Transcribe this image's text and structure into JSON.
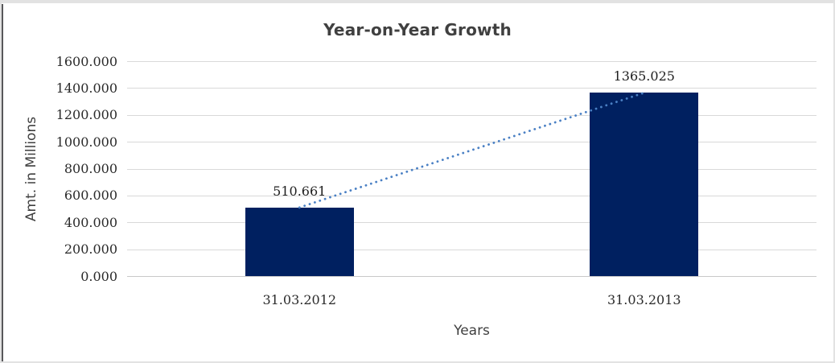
{
  "chart_data": {
    "type": "bar",
    "title": "Year-on-Year Growth",
    "categories": [
      "31.03.2012",
      "31.03.2013"
    ],
    "series": [
      {
        "name": "Amt. in Millions",
        "values": [
          510.661,
          1365.025
        ]
      }
    ],
    "data_labels": [
      "510.661",
      "1365.025"
    ],
    "trendline": {
      "style": "dotted",
      "color": "#4A80C4",
      "points": [
        [
          0,
          510.661
        ],
        [
          1,
          1365.025
        ]
      ]
    },
    "xlabel": "Years",
    "ylabel": "Amt. in Millions",
    "ylim": [
      0,
      1600
    ],
    "ytick_step": 200,
    "y_tick_labels": [
      "0.000",
      "200.000",
      "400.000",
      "600.000",
      "800.000",
      "1000.000",
      "1200.000",
      "1400.000",
      "1600.000"
    ],
    "grid": "horizontal",
    "legend": "none",
    "bar_color": "#002060"
  },
  "colors": {
    "title_text": "#404040",
    "axis_title_text": "#3F3F3F",
    "tick_text": "#2B2B2B",
    "data_label_text": "#1F1F1F",
    "category_text": "#2B2B2B",
    "gridline": "#D9D9D9",
    "axis_line": "#C9C9C9",
    "frame_light": "#E2E2E2",
    "frame_dark": "#58585A",
    "background": "#FFFFFF"
  }
}
